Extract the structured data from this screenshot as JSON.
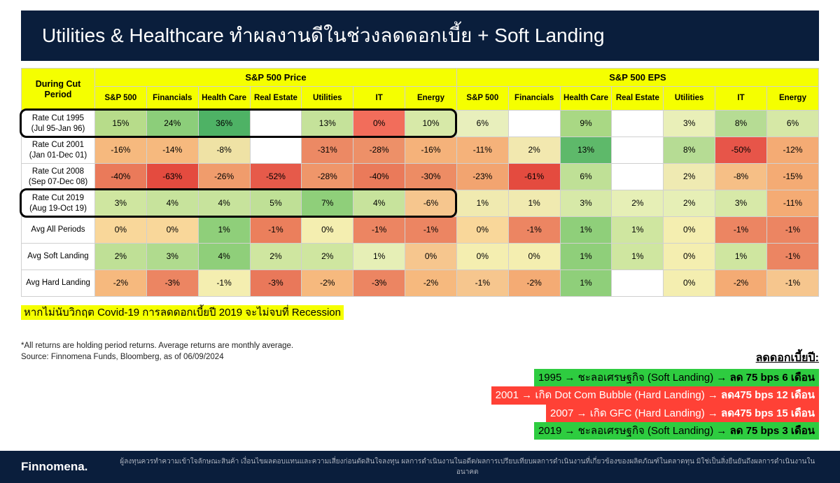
{
  "title": "Utilities & Healthcare ทำผลงานดีในช่วงลดดอกเบี้ย + Soft Landing",
  "table": {
    "corner_header": "During Cut Period",
    "group_headers": [
      "S&P 500 Price",
      "S&P 500 EPS"
    ],
    "sub_header_style": {
      "bg": "#f5ff00",
      "fontsize": 12,
      "fontweight": "bold"
    },
    "columns": [
      "S&P 500",
      "Financials",
      "Health Care",
      "Real Estate",
      "Utilities",
      "IT",
      "Energy",
      "S&P 500",
      "Financials",
      "Health Care",
      "Real Estate",
      "Utilities",
      "IT",
      "Energy"
    ],
    "rows": [
      {
        "label_main": "Rate Cut 1995",
        "label_sub": "(Jul 95-Jan 96)",
        "cells": [
          {
            "v": "15%",
            "c": "#b7dc8a"
          },
          {
            "v": "24%",
            "c": "#8cce7a"
          },
          {
            "v": "36%",
            "c": "#4eb265"
          },
          {
            "v": "",
            "c": "#ffffff"
          },
          {
            "v": "13%",
            "c": "#c5e29a"
          },
          {
            "v": "0%",
            "c": "#f26d5b"
          },
          {
            "v": "10%",
            "c": "#d7e9a8"
          },
          {
            "v": "6%",
            "c": "#e8efbc"
          },
          {
            "v": "",
            "c": "#ffffff"
          },
          {
            "v": "9%",
            "c": "#a9d884"
          },
          {
            "v": "",
            "c": "#ffffff"
          },
          {
            "v": "3%",
            "c": "#e9efb8"
          },
          {
            "v": "8%",
            "c": "#b6dc94"
          },
          {
            "v": "6%",
            "c": "#d6e8a6"
          }
        ]
      },
      {
        "label_main": "Rate Cut 2001",
        "label_sub": "(Jan 01-Dec 01)",
        "cells": [
          {
            "v": "-16%",
            "c": "#f6b97e"
          },
          {
            "v": "-14%",
            "c": "#f6b97e"
          },
          {
            "v": "-8%",
            "c": "#efe2a5"
          },
          {
            "v": "",
            "c": "#ffffff"
          },
          {
            "v": "-31%",
            "c": "#ec8964"
          },
          {
            "v": "-28%",
            "c": "#ed9068"
          },
          {
            "v": "-16%",
            "c": "#f5b27a"
          },
          {
            "v": "-11%",
            "c": "#f5b27a"
          },
          {
            "v": "2%",
            "c": "#f2e8af"
          },
          {
            "v": "13%",
            "c": "#5eb96a"
          },
          {
            "v": "",
            "c": "#ffffff"
          },
          {
            "v": "8%",
            "c": "#b6dc94"
          },
          {
            "v": "-50%",
            "c": "#e75549"
          },
          {
            "v": "-12%",
            "c": "#f4ab74"
          }
        ]
      },
      {
        "label_main": "Rate Cut 2008",
        "label_sub": "(Sep 07-Dec 08)",
        "cells": [
          {
            "v": "-40%",
            "c": "#ea7a5a"
          },
          {
            "v": "-63%",
            "c": "#e44b3f"
          },
          {
            "v": "-26%",
            "c": "#f09c6c"
          },
          {
            "v": "-52%",
            "c": "#e65a4a"
          },
          {
            "v": "-28%",
            "c": "#ef966a"
          },
          {
            "v": "-40%",
            "c": "#ea7a5a"
          },
          {
            "v": "-30%",
            "c": "#ed8c64"
          },
          {
            "v": "-23%",
            "c": "#f2a470"
          },
          {
            "v": "-61%",
            "c": "#e44b3f"
          },
          {
            "v": "6%",
            "c": "#bfe096"
          },
          {
            "v": "",
            "c": "#ffffff"
          },
          {
            "v": "2%",
            "c": "#efeab2"
          },
          {
            "v": "-8%",
            "c": "#f6bf86"
          },
          {
            "v": "-15%",
            "c": "#f4ab74"
          }
        ]
      },
      {
        "label_main": "Rate Cut 2019",
        "label_sub": "(Aug 19-Oct 19)",
        "cells": [
          {
            "v": "3%",
            "c": "#cfe6a0"
          },
          {
            "v": "4%",
            "c": "#c7e39c"
          },
          {
            "v": "4%",
            "c": "#c7e39c"
          },
          {
            "v": "5%",
            "c": "#bfe096"
          },
          {
            "v": "7%",
            "c": "#8fcf7a"
          },
          {
            "v": "4%",
            "c": "#c7e39c"
          },
          {
            "v": "-6%",
            "c": "#f6c68e"
          },
          {
            "v": "1%",
            "c": "#f0eab0"
          },
          {
            "v": "1%",
            "c": "#f0eab0"
          },
          {
            "v": "3%",
            "c": "#d7e9a8"
          },
          {
            "v": "2%",
            "c": "#e6efb6"
          },
          {
            "v": "2%",
            "c": "#e6efb6"
          },
          {
            "v": "3%",
            "c": "#d7e9a8"
          },
          {
            "v": "-11%",
            "c": "#f4ab74"
          }
        ]
      },
      {
        "label_main": "Avg All Periods",
        "label_sub": "",
        "cells": [
          {
            "v": "0%",
            "c": "#f9d79a"
          },
          {
            "v": "0%",
            "c": "#f9d79a"
          },
          {
            "v": "1%",
            "c": "#8fcf7a"
          },
          {
            "v": "-1%",
            "c": "#eb7f5c"
          },
          {
            "v": "0%",
            "c": "#f4eeb0"
          },
          {
            "v": "-1%",
            "c": "#ec8562"
          },
          {
            "v": "-1%",
            "c": "#ec8562"
          },
          {
            "v": "0%",
            "c": "#f9d79a"
          },
          {
            "v": "-1%",
            "c": "#ec8562"
          },
          {
            "v": "1%",
            "c": "#8fcf7a"
          },
          {
            "v": "1%",
            "c": "#cfe6a0"
          },
          {
            "v": "0%",
            "c": "#f4eeb0"
          },
          {
            "v": "-1%",
            "c": "#ec8562"
          },
          {
            "v": "-1%",
            "c": "#ec8562"
          }
        ]
      },
      {
        "label_main": "Avg Soft Landing",
        "label_sub": "",
        "cells": [
          {
            "v": "2%",
            "c": "#bfe096"
          },
          {
            "v": "3%",
            "c": "#b0db8e"
          },
          {
            "v": "4%",
            "c": "#8fcf7a"
          },
          {
            "v": "2%",
            "c": "#cfe6a0"
          },
          {
            "v": "2%",
            "c": "#cfe6a0"
          },
          {
            "v": "1%",
            "c": "#e6efb6"
          },
          {
            "v": "0%",
            "c": "#f6c68e"
          },
          {
            "v": "0%",
            "c": "#f4eeb0"
          },
          {
            "v": "0%",
            "c": "#f4eeb0"
          },
          {
            "v": "1%",
            "c": "#8fcf7a"
          },
          {
            "v": "1%",
            "c": "#cfe6a0"
          },
          {
            "v": "0%",
            "c": "#f4eeb0"
          },
          {
            "v": "1%",
            "c": "#cfe6a0"
          },
          {
            "v": "-1%",
            "c": "#ec8562"
          }
        ]
      },
      {
        "label_main": "Avg Hard Landing",
        "label_sub": "",
        "cells": [
          {
            "v": "-2%",
            "c": "#f6b97e"
          },
          {
            "v": "-3%",
            "c": "#ec8562"
          },
          {
            "v": "-1%",
            "c": "#f4eeb0"
          },
          {
            "v": "-3%",
            "c": "#e9785a"
          },
          {
            "v": "-2%",
            "c": "#f6b97e"
          },
          {
            "v": "-3%",
            "c": "#ec8562"
          },
          {
            "v": "-2%",
            "c": "#f6b97e"
          },
          {
            "v": "-1%",
            "c": "#f6c68e"
          },
          {
            "v": "-2%",
            "c": "#f4ab74"
          },
          {
            "v": "1%",
            "c": "#8fcf7a"
          },
          {
            "v": "",
            "c": "#ffffff"
          },
          {
            "v": "0%",
            "c": "#f4eeb0"
          },
          {
            "v": "-2%",
            "c": "#f4ab74"
          },
          {
            "v": "-1%",
            "c": "#f6c68e"
          }
        ]
      }
    ],
    "highlight_rows": [
      0,
      3
    ],
    "highlight_box_style": {
      "border_color": "#000000",
      "border_width": 3,
      "radius": 10
    }
  },
  "note_highlight": "หากไม่นับวิกฤต Covid-19 การลดดอกเบี้ยปี 2019 จะไม่จบที่ Recession",
  "footnote1": "*All returns are holding period returns. Average returns are monthly average.",
  "footnote2": "Source: Finnomena Funds, Bloomberg, as of 06/09/2024",
  "summary": {
    "title": "ลดดอกเบี้ยปี:",
    "lines": [
      {
        "text_plain": "1995 → ชะลอเศรษฐกิจ (Soft Landing) → ",
        "text_bold": "ลด 75 bps 6 เดือน",
        "bg": "#2ecc40"
      },
      {
        "text_plain": "2001 → เกิด Dot Com Bubble (Hard Landing) → ",
        "text_bold": "ลด475 bps 12 เดือน",
        "bg": "#ff4136",
        "color": "#ffffff"
      },
      {
        "text_plain": "2007 → เกิด GFC (Hard Landing) → ",
        "text_bold": "ลด475 bps 15 เดือน",
        "bg": "#ff4136",
        "color": "#ffffff"
      },
      {
        "text_plain": "2019 → ชะลอเศรษฐกิจ (Soft Landing) → ",
        "text_bold": "ลด 75 bps 3 เดือน",
        "bg": "#2ecc40"
      }
    ]
  },
  "brand": "Finnomena.",
  "disclaimer": "ผู้ลงทุนควรทำความเข้าใจลักษณะสินค้า เงื่อนไขผลตอบแทนและความเสี่ยงก่อนตัดสินใจลงทุน ผลการดำเนินงานในอดีต/ผลการเปรียบเทียบผลการดำเนินงานที่เกี่ยวข้องของผลิตภัณฑ์ในตลาดทุน มิใช่เป็นสิ่งยืนยันถึงผลการดำเนินงานในอนาคต",
  "colors": {
    "title_bg": "#0a1e3c",
    "header_bg": "#f5ff00",
    "note_bg": "#f5ff00"
  }
}
